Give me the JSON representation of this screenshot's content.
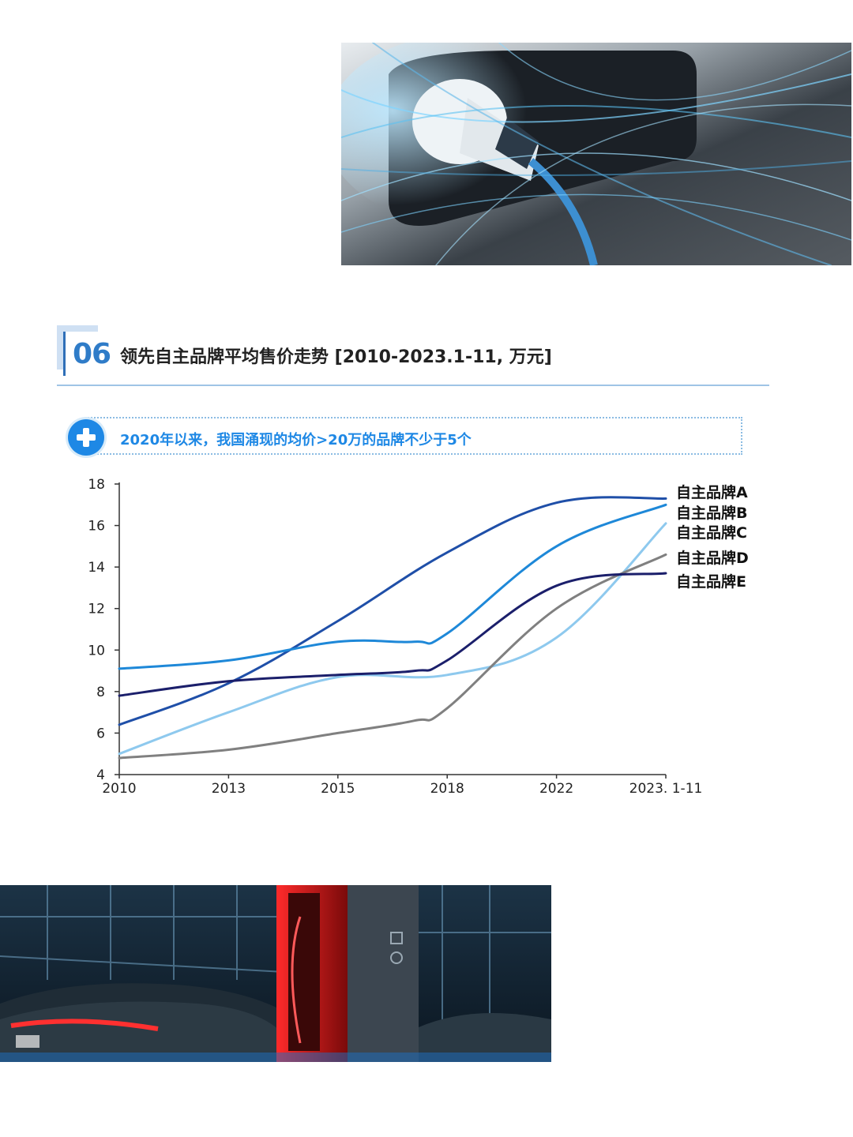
{
  "header": {
    "section_number": "06",
    "title": "领先自主品牌平均售价走势 [2010-2023.1-11, 万元]"
  },
  "callout": {
    "icon": "plus-icon",
    "text": "2020年以来，我国涌现的均价>20万的品牌不少于5个",
    "color": "#1e88e5"
  },
  "chart_data": {
    "type": "line",
    "title": "领先自主品牌平均售价走势 [2010-2023.1-11, 万元]",
    "xlabel": "",
    "ylabel": "",
    "x_ticks": [
      "2010",
      "2013",
      "2015",
      "2018",
      "2022",
      "2023. 1-11"
    ],
    "ylim": [
      4,
      18
    ],
    "y_ticks": [
      4,
      6,
      8,
      10,
      12,
      14,
      16,
      18
    ],
    "grid": false,
    "legend": "labels at right end of lines",
    "series": [
      {
        "name": "自主品牌A",
        "color": "#1f4fa8",
        "points": [
          [
            0,
            6.4
          ],
          [
            1,
            8.4
          ],
          [
            2,
            11.4
          ],
          [
            3,
            14.7
          ],
          [
            4,
            17.1
          ],
          [
            5,
            17.3
          ]
        ]
      },
      {
        "name": "自主品牌B",
        "color": "#1e88d8",
        "points": [
          [
            0,
            9.1
          ],
          [
            1,
            9.5
          ],
          [
            2,
            10.4
          ],
          [
            2.7,
            10.4
          ],
          [
            3,
            10.8
          ],
          [
            4,
            15.0
          ],
          [
            5,
            17.0
          ]
        ]
      },
      {
        "name": "自主品牌C",
        "color": "#8ec9ee",
        "points": [
          [
            0,
            5.0
          ],
          [
            1,
            7.0
          ],
          [
            2,
            8.7
          ],
          [
            3,
            8.8
          ],
          [
            4,
            10.6
          ],
          [
            5,
            16.1
          ]
        ]
      },
      {
        "name": "自主品牌D",
        "color": "#808080",
        "points": [
          [
            0,
            4.8
          ],
          [
            1,
            5.2
          ],
          [
            2,
            6.0
          ],
          [
            2.7,
            6.6
          ],
          [
            3,
            7.2
          ],
          [
            4,
            12.0
          ],
          [
            5,
            14.6
          ]
        ]
      },
      {
        "name": "自主品牌E",
        "color": "#1b1f6b",
        "points": [
          [
            0,
            7.8
          ],
          [
            1,
            8.5
          ],
          [
            2,
            8.8
          ],
          [
            2.7,
            9.0
          ],
          [
            3,
            9.5
          ],
          [
            4,
            13.1
          ],
          [
            5,
            13.7
          ]
        ]
      }
    ]
  }
}
